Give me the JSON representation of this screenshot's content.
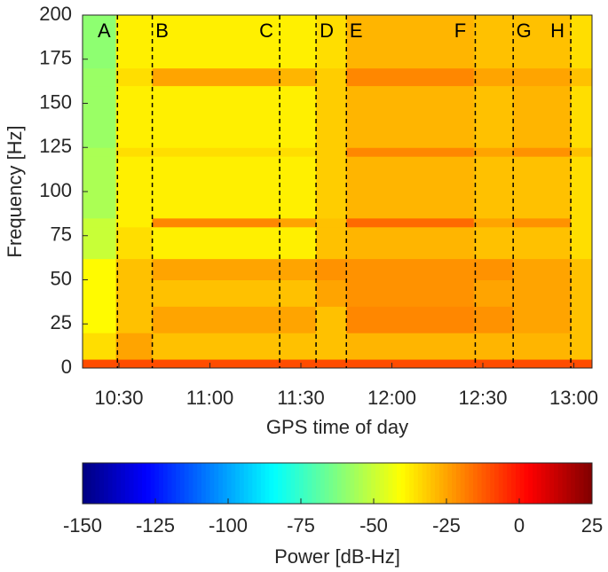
{
  "chart_data": {
    "type": "heatmap",
    "xlabel": "GPS time of day",
    "ylabel": "Frequency [Hz]",
    "xlim": [
      618,
      786
    ],
    "xticks": [
      {
        "value": 630,
        "label": "10:30"
      },
      {
        "value": 660,
        "label": "11:00"
      },
      {
        "value": 690,
        "label": "11:30"
      },
      {
        "value": 720,
        "label": "12:00"
      },
      {
        "value": 750,
        "label": "12:30"
      },
      {
        "value": 780,
        "label": "13:00"
      }
    ],
    "ylim": [
      0,
      200
    ],
    "yticks": [
      0,
      25,
      50,
      75,
      100,
      125,
      150,
      175,
      200
    ],
    "x_edges": [
      618,
      629,
      641,
      683,
      695,
      705,
      747,
      760,
      779,
      786
    ],
    "y_edges": [
      0,
      5,
      20,
      35,
      50,
      62,
      80,
      85,
      120,
      125,
      160,
      170,
      200
    ],
    "values": [
      [
        -10,
        -10,
        -10,
        -10,
        -10,
        -10,
        -10,
        -10,
        -10
      ],
      [
        -35,
        -25,
        -30,
        -30,
        -30,
        -28,
        -28,
        -28,
        -30
      ],
      [
        -40,
        -30,
        -25,
        -25,
        -30,
        -20,
        -22,
        -25,
        -30
      ],
      [
        -40,
        -30,
        -30,
        -30,
        -25,
        -22,
        -25,
        -25,
        -30
      ],
      [
        -40,
        -30,
        -25,
        -25,
        -22,
        -22,
        -22,
        -25,
        -30
      ],
      [
        -50,
        -35,
        -38,
        -38,
        -30,
        -28,
        -30,
        -30,
        -35
      ],
      [
        -50,
        -38,
        -20,
        -25,
        -30,
        -15,
        -25,
        -22,
        -35
      ],
      [
        -55,
        -38,
        -38,
        -38,
        -32,
        -28,
        -30,
        -30,
        -35
      ],
      [
        -55,
        -35,
        -35,
        -35,
        -32,
        -20,
        -25,
        -22,
        -30
      ],
      [
        -58,
        -38,
        -38,
        -38,
        -32,
        -28,
        -30,
        -28,
        -35
      ],
      [
        -58,
        -35,
        -25,
        -28,
        -32,
        -20,
        -25,
        -25,
        -30
      ],
      [
        -60,
        -38,
        -38,
        -38,
        -35,
        -28,
        -30,
        -30,
        -35
      ]
    ],
    "markers": [
      {
        "label": "A",
        "x": 629.5
      },
      {
        "label": "B",
        "x": 641
      },
      {
        "label": "C",
        "x": 683
      },
      {
        "label": "D",
        "x": 695
      },
      {
        "label": "E",
        "x": 705
      },
      {
        "label": "F",
        "x": 747.5
      },
      {
        "label": "G",
        "x": 760
      },
      {
        "label": "H",
        "x": 779
      }
    ],
    "colormap": "jet",
    "colorbar": {
      "label": "Power [dB-Hz]",
      "lim": [
        -150,
        25
      ],
      "ticks": [
        -150,
        -125,
        -100,
        -75,
        -50,
        -25,
        0,
        25
      ]
    }
  }
}
